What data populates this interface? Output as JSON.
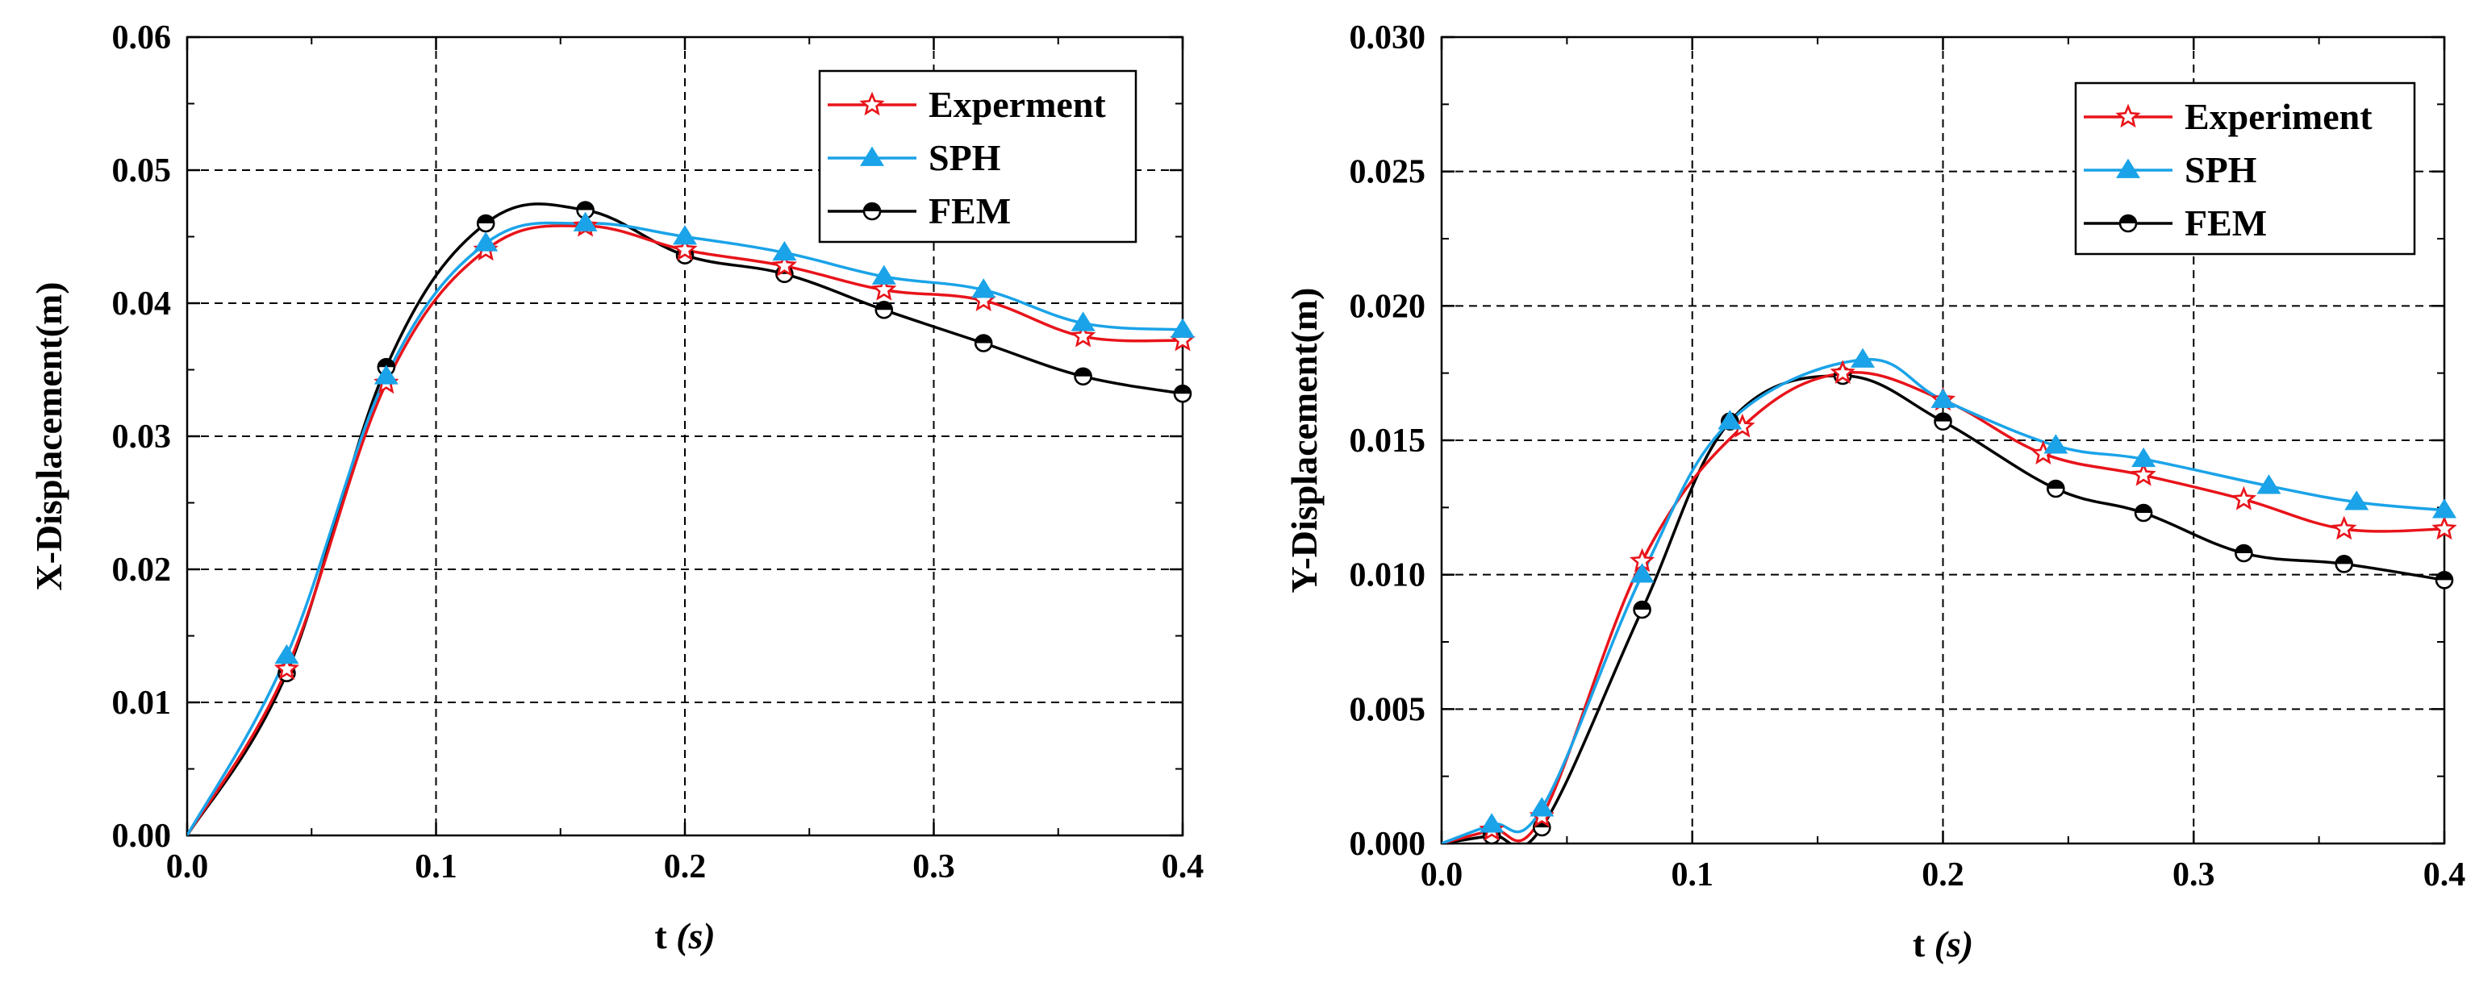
{
  "colors": {
    "experiment": "#e8141a",
    "sph": "#1aa3e8",
    "fem": "#000000",
    "axis": "#000000",
    "grid": "#000000"
  },
  "chart_data": [
    {
      "type": "line",
      "id": "x",
      "xlabel_main": "t",
      "xlabel_unit": "(s)",
      "ylabel": "X-Displacement(m)",
      "xlim": [
        0,
        0.4
      ],
      "ylim": [
        0,
        0.06
      ],
      "xticks": [
        "0.0",
        "0.1",
        "0.2",
        "0.3",
        "0.4"
      ],
      "xtick_values": [
        0,
        0.1,
        0.2,
        0.3,
        0.4
      ],
      "yticks": [
        "0.00",
        "0.01",
        "0.02",
        "0.03",
        "0.04",
        "0.05",
        "0.06"
      ],
      "ytick_values": [
        0,
        0.01,
        0.02,
        0.03,
        0.04,
        0.05,
        0.06
      ],
      "grid": true,
      "legend_position": "top-right",
      "series": [
        {
          "name": "Experment",
          "color_key": "experiment",
          "marker": "star",
          "points": [
            [
              0,
              0
            ],
            [
              0.04,
              0.0125
            ],
            [
              0.08,
              0.034
            ],
            [
              0.12,
              0.044
            ],
            [
              0.16,
              0.0458
            ],
            [
              0.2,
              0.044
            ],
            [
              0.24,
              0.0428
            ],
            [
              0.28,
              0.041
            ],
            [
              0.32,
              0.0402
            ],
            [
              0.36,
              0.0375
            ],
            [
              0.4,
              0.0372
            ]
          ]
        },
        {
          "name": "SPH",
          "color_key": "sph",
          "marker": "triangle",
          "points": [
            [
              0,
              0
            ],
            [
              0.04,
              0.0135
            ],
            [
              0.08,
              0.0345
            ],
            [
              0.12,
              0.0445
            ],
            [
              0.16,
              0.046
            ],
            [
              0.2,
              0.045
            ],
            [
              0.24,
              0.0438
            ],
            [
              0.28,
              0.042
            ],
            [
              0.32,
              0.041
            ],
            [
              0.36,
              0.0385
            ],
            [
              0.4,
              0.038
            ]
          ]
        },
        {
          "name": "FEM",
          "color_key": "fem",
          "marker": "circle",
          "points": [
            [
              0,
              0
            ],
            [
              0.04,
              0.0122
            ],
            [
              0.08,
              0.0352
            ],
            [
              0.12,
              0.046
            ],
            [
              0.16,
              0.047
            ],
            [
              0.2,
              0.0436
            ],
            [
              0.24,
              0.0422
            ],
            [
              0.28,
              0.0395
            ],
            [
              0.32,
              0.037
            ],
            [
              0.36,
              0.0345
            ],
            [
              0.4,
              0.0332
            ]
          ]
        }
      ]
    },
    {
      "type": "line",
      "id": "y",
      "xlabel_main": "t",
      "xlabel_unit": "(s)",
      "ylabel": "Y-Displacement(m)",
      "xlim": [
        0,
        0.4
      ],
      "ylim": [
        0,
        0.03
      ],
      "xticks": [
        "0.0",
        "0.1",
        "0.2",
        "0.3",
        "0.4"
      ],
      "xtick_values": [
        0,
        0.1,
        0.2,
        0.3,
        0.4
      ],
      "yticks": [
        "0.000",
        "0.005",
        "0.010",
        "0.015",
        "0.020",
        "0.025",
        "0.030"
      ],
      "ytick_values": [
        0,
        0.005,
        0.01,
        0.015,
        0.02,
        0.025,
        0.03
      ],
      "grid": true,
      "legend_position": "top-right",
      "series": [
        {
          "name": "Experiment",
          "color_key": "experiment",
          "marker": "star",
          "points": [
            [
              0,
              0
            ],
            [
              0.02,
              0.0005
            ],
            [
              0.04,
              0.001
            ],
            [
              0.08,
              0.0105
            ],
            [
              0.12,
              0.0155
            ],
            [
              0.16,
              0.0175
            ],
            [
              0.2,
              0.0165
            ],
            [
              0.24,
              0.0145
            ],
            [
              0.28,
              0.0137
            ],
            [
              0.32,
              0.0128
            ],
            [
              0.36,
              0.0117
            ],
            [
              0.4,
              0.0117
            ]
          ]
        },
        {
          "name": "SPH",
          "color_key": "sph",
          "marker": "triangle",
          "points": [
            [
              0,
              0
            ],
            [
              0.02,
              0.0007
            ],
            [
              0.04,
              0.0013
            ],
            [
              0.08,
              0.01
            ],
            [
              0.115,
              0.0157
            ],
            [
              0.168,
              0.018
            ],
            [
              0.2,
              0.0165
            ],
            [
              0.245,
              0.0148
            ],
            [
              0.28,
              0.0143
            ],
            [
              0.33,
              0.0133
            ],
            [
              0.365,
              0.0127
            ],
            [
              0.4,
              0.0124
            ]
          ]
        },
        {
          "name": "FEM",
          "color_key": "fem",
          "marker": "circle",
          "points": [
            [
              0,
              0
            ],
            [
              0.02,
              0.0003
            ],
            [
              0.04,
              0.0006
            ],
            [
              0.08,
              0.0087
            ],
            [
              0.115,
              0.0157
            ],
            [
              0.16,
              0.0174
            ],
            [
              0.2,
              0.0157
            ],
            [
              0.245,
              0.0132
            ],
            [
              0.28,
              0.0123
            ],
            [
              0.32,
              0.0108
            ],
            [
              0.36,
              0.0104
            ],
            [
              0.4,
              0.0098
            ]
          ]
        }
      ]
    }
  ]
}
